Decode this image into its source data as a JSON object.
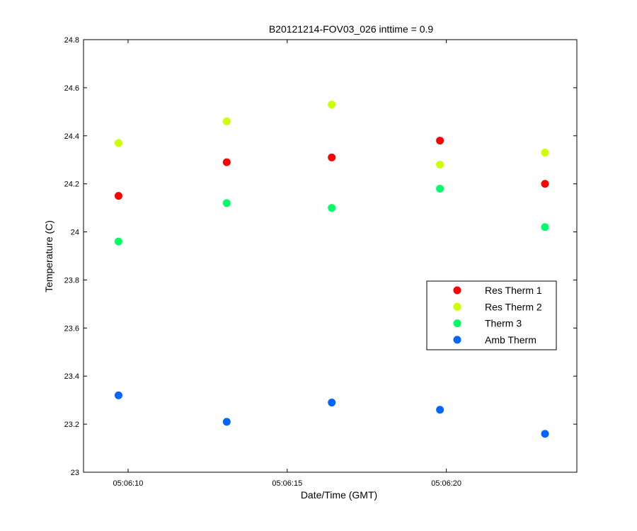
{
  "chart_data": {
    "type": "scatter",
    "title": "B20121214-FOV03_026 inttime = 0.9",
    "xlabel": "Date/Time (GMT)",
    "ylabel": "Temperature (C)",
    "x_ticks": [
      "05:06:10",
      "05:06:15",
      "05:06:20"
    ],
    "x_tick_values": [
      "05:06:10",
      "05:06:15",
      "05:06:20"
    ],
    "xlim": [
      "05:06:08.6",
      "05:06:24.1"
    ],
    "ylim": [
      23,
      24.8
    ],
    "y_ticks": [
      "23",
      "23.2",
      "23.4",
      "23.6",
      "23.8",
      "24",
      "24.2",
      "24.4",
      "24.6",
      "24.8"
    ],
    "x": [
      "05:06:09.7",
      "05:06:13.1",
      "05:06:16.4",
      "05:06:19.8",
      "05:06:23.1"
    ],
    "series": [
      {
        "name": "Res Therm 1",
        "color": "#ff0000",
        "values": [
          24.15,
          24.29,
          24.31,
          24.38,
          24.2
        ]
      },
      {
        "name": "Res Therm 2",
        "color": "#ccff00",
        "values": [
          24.37,
          24.46,
          24.53,
          24.28,
          24.33
        ]
      },
      {
        "name": "Therm 3",
        "color": "#00ff66",
        "values": [
          23.96,
          24.12,
          24.1,
          24.18,
          24.02
        ]
      },
      {
        "name": "Amb Therm",
        "color": "#0066ff",
        "values": [
          23.32,
          23.21,
          23.29,
          23.26,
          23.16
        ]
      }
    ],
    "grid": false,
    "legend_position": "right"
  }
}
